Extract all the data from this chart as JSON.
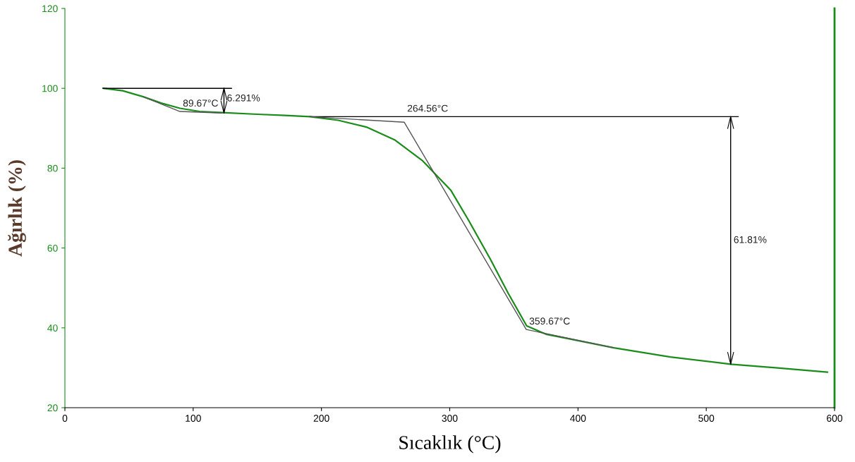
{
  "chart_data": {
    "type": "line",
    "xlabel": "Sıcaklık (°C)",
    "ylabel": "Ağırlık (%)",
    "xlim": [
      0,
      600
    ],
    "xticks": [
      0,
      100,
      200,
      300,
      400,
      500,
      600
    ],
    "ylim": [
      20,
      120
    ],
    "yticks": [
      20,
      40,
      60,
      80,
      100,
      120
    ],
    "grid": false,
    "legend": false,
    "series": [
      {
        "color": "#1a8c1a",
        "x": [
          29.7,
          45,
          61,
          75,
          89.7,
          105,
          122.6,
          150,
          171.6,
          190.9,
          213,
          235,
          257,
          279,
          301,
          314.6,
          332,
          345.5,
          360,
          375,
          389,
          428,
          472,
          519,
          554,
          594.6
        ],
        "values": [
          100,
          99.4,
          97.9,
          96.3,
          95,
          94.2,
          93.9,
          93.5,
          93.2,
          92.9,
          92,
          90.3,
          87.1,
          81.8,
          74.4,
          67,
          57,
          48.7,
          40.5,
          38.4,
          37.5,
          35,
          32.7,
          30.9,
          30.0,
          28.9
        ]
      },
      {
        "color": "#000000",
        "x": [
          29.7,
          130
        ],
        "values": [
          100,
          100
        ]
      },
      {
        "color": "#555555",
        "x": [
          61,
          89.67,
          122.6
        ],
        "values": [
          97.9,
          94.2,
          93.8
        ]
      },
      {
        "color": "#000000",
        "x": [
          124,
          124
        ],
        "values": [
          100,
          93.8
        ]
      },
      {
        "color": "#000000",
        "x": [
          190.9,
          525
        ],
        "values": [
          92.9,
          92.9
        ]
      },
      {
        "color": "#555555",
        "x": [
          190.9,
          264.56,
          359.67,
          428
        ],
        "values": [
          92.9,
          91.5,
          39.6,
          35
        ]
      },
      {
        "color": "#000000",
        "x": [
          519,
          519
        ],
        "values": [
          92.9,
          30.9
        ]
      }
    ],
    "annotations": [
      {
        "text": "89.67°C",
        "x": 89.67,
        "y": 94.2
      },
      {
        "text": "6.291%",
        "x": 124,
        "y": 95.5
      },
      {
        "text": "264.56°C",
        "x": 264.56,
        "y": 92.9
      },
      {
        "text": "359.67°C",
        "x": 359.67,
        "y": 39.6
      },
      {
        "text": "61.81%",
        "x": 519,
        "y": 60
      }
    ]
  }
}
